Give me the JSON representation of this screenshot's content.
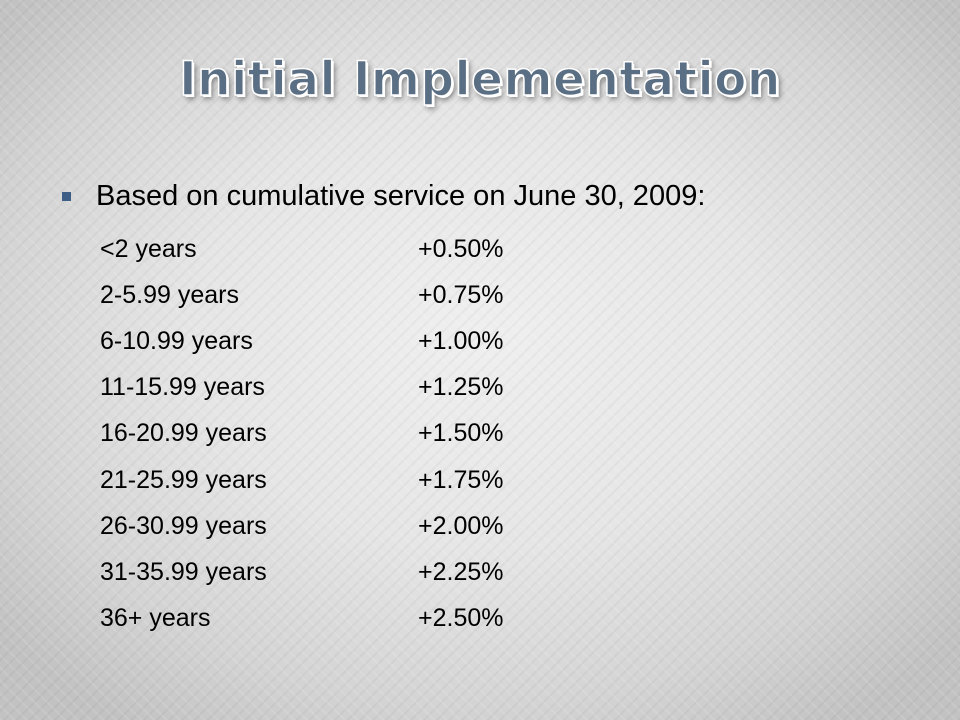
{
  "slide": {
    "title": "Initial Implementation",
    "lead": "Based on cumulative service on June 30, 2009:",
    "rows": [
      {
        "range": "<2 years",
        "rate": "+0.50%"
      },
      {
        "range": "2-5.99 years",
        "rate": "+0.75%"
      },
      {
        "range": "6-10.99 years",
        "rate": "+1.00%"
      },
      {
        "range": "11-15.99 years",
        "rate": "+1.25%"
      },
      {
        "range": "16-20.99 years",
        "rate": "+1.50%"
      },
      {
        "range": "21-25.99 years",
        "rate": "+1.75%"
      },
      {
        "range": "26-30.99 years",
        "rate": "+2.00%"
      },
      {
        "range": "31-35.99 years",
        "rate": "+2.25%"
      },
      {
        "range": "36+ years",
        "rate": "+2.50%"
      }
    ]
  },
  "colors": {
    "title_fill": "#5b6f84",
    "bullet": "#3d5f86",
    "text": "#000000"
  }
}
